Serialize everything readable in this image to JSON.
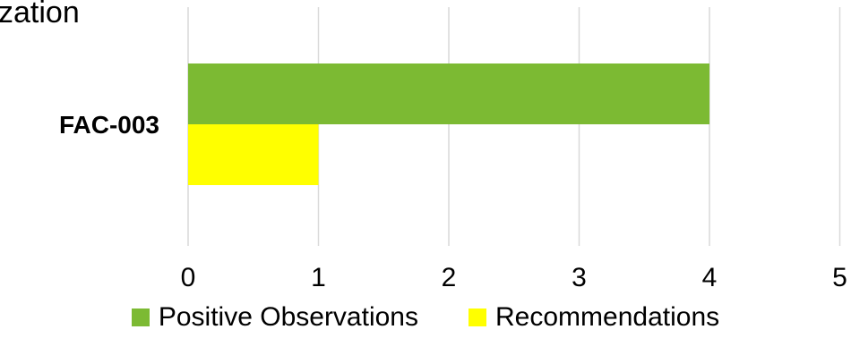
{
  "chart_data": {
    "type": "bar",
    "orientation": "horizontal",
    "title": "…zation",
    "categories": [
      "FAC-003"
    ],
    "series": [
      {
        "name": "Positive Observations",
        "values": [
          4
        ],
        "color": "#7cba33"
      },
      {
        "name": "Recommendations",
        "values": [
          1
        ],
        "color": "#ffff00"
      }
    ],
    "xlim": [
      0,
      5
    ],
    "xticks": [
      0,
      1,
      2,
      3,
      4,
      5
    ],
    "grid": true,
    "legend": "bottom"
  },
  "legend": {
    "items": [
      {
        "label": "Positive Observations",
        "color": "#7cba33"
      },
      {
        "label": "Recommendations",
        "color": "#ffff00"
      }
    ]
  },
  "title_fragment": "zation"
}
